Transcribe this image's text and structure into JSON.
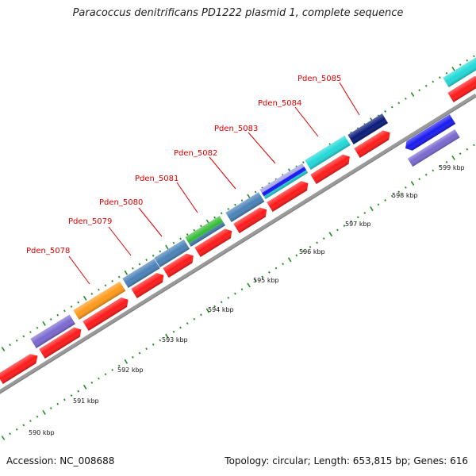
{
  "title": "Paracoccus denitrificans PD1222 plasmid 1, complete sequence",
  "footer": {
    "accession": "Accession: NC_008688",
    "summary": "Topology: circular; Length: 653,815 bp; Genes: 616"
  },
  "ruler_labels": [
    "590 kbp",
    "591 kbp",
    "592 kbp",
    "593 kbp",
    "594 kbp",
    "595 kbp",
    "596 kbp",
    "597 kbp",
    "598 kbp",
    "599 kbp"
  ],
  "gene_labels": [
    "Pden_5078",
    "Pden_5079",
    "Pden_5080",
    "Pden_5081",
    "Pden_5082",
    "Pden_5083",
    "Pden_5084",
    "Pden_5085"
  ],
  "colors": {
    "background": "#ffffff",
    "backbone": "#9a9a9a",
    "tick": "#228b22",
    "label_red": "#e00000",
    "cds_red": "#ff1a1a",
    "orange": "#ff9a1a",
    "steelblue": "#4a82b8",
    "green": "#33bb33",
    "purple": "#7a68d0",
    "cyan": "#22d8d8",
    "navy": "#0a1a7a",
    "blue": "#1a1af0"
  }
}
